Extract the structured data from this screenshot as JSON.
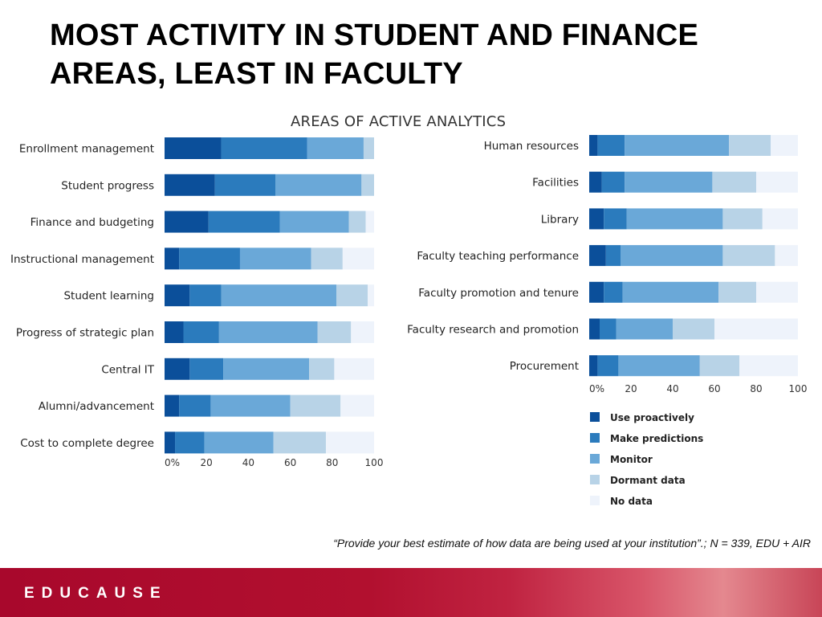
{
  "slide": {
    "title": "MOST ACTIVITY IN STUDENT AND FINANCE AREAS, LEAST IN FACULTY",
    "chart_title": "AREAS OF ACTIVE ANALYTICS",
    "footnote": "“Provide your best estimate of how data are being used at your institution”.; N = 339, EDU + AIR",
    "brand": "EDUCAUSE"
  },
  "colors": {
    "use_proactively": "#0b4f9a",
    "make_predictions": "#2b7bbd",
    "monitor": "#6aa8d8",
    "dormant_data": "#b8d3e7",
    "no_data": "#eef3fb"
  },
  "chart_data": [
    {
      "type": "bar",
      "orientation": "horizontal",
      "stacked": true,
      "title": "AREAS OF ACTIVE ANALYTICS",
      "categories": [
        "Enrollment management",
        "Student progress",
        "Finance and budgeting",
        "Instructional management",
        "Student learning",
        "Progress of strategic plan",
        "Central IT",
        "Alumni/advancement",
        "Cost to complete degree"
      ],
      "series": [
        {
          "name": "Use proactively",
          "values": [
            27,
            24,
            21,
            7,
            12,
            9,
            12,
            7,
            5
          ]
        },
        {
          "name": "Make predictions",
          "values": [
            41,
            29,
            34,
            29,
            15,
            17,
            16,
            15,
            14
          ]
        },
        {
          "name": "Monitor",
          "values": [
            27,
            41,
            33,
            34,
            55,
            47,
            41,
            38,
            33
          ]
        },
        {
          "name": "Dormant data",
          "values": [
            5,
            6,
            8,
            15,
            15,
            16,
            12,
            24,
            25
          ]
        },
        {
          "name": "No data",
          "values": [
            0,
            0,
            4,
            15,
            3,
            11,
            19,
            16,
            23
          ]
        }
      ],
      "x_ticks": [
        "0%",
        "20",
        "40",
        "60",
        "80",
        "100"
      ],
      "xlim": [
        0,
        100
      ],
      "legend_position": "bottom-right"
    },
    {
      "type": "bar",
      "orientation": "horizontal",
      "stacked": true,
      "categories": [
        "Human resources",
        "Facilities",
        "Library",
        "Faculty teaching performance",
        "Faculty promotion and tenure",
        "Faculty research and promotion",
        "Procurement"
      ],
      "series": [
        {
          "name": "Use proactively",
          "values": [
            4,
            6,
            7,
            8,
            7,
            5,
            4
          ]
        },
        {
          "name": "Make predictions",
          "values": [
            13,
            11,
            11,
            7,
            9,
            8,
            10
          ]
        },
        {
          "name": "Monitor",
          "values": [
            50,
            42,
            46,
            49,
            46,
            27,
            39
          ]
        },
        {
          "name": "Dormant data",
          "values": [
            20,
            21,
            19,
            25,
            18,
            20,
            19
          ]
        },
        {
          "name": "No data",
          "values": [
            13,
            20,
            17,
            11,
            20,
            40,
            28
          ]
        }
      ],
      "x_ticks": [
        "0%",
        "20",
        "40",
        "60",
        "80",
        "100"
      ],
      "xlim": [
        0,
        100
      ],
      "legend_position": "bottom-right"
    }
  ],
  "legend": {
    "items": [
      "Use proactively",
      "Make predictions",
      "Monitor",
      "Dormant data",
      "No data"
    ]
  }
}
